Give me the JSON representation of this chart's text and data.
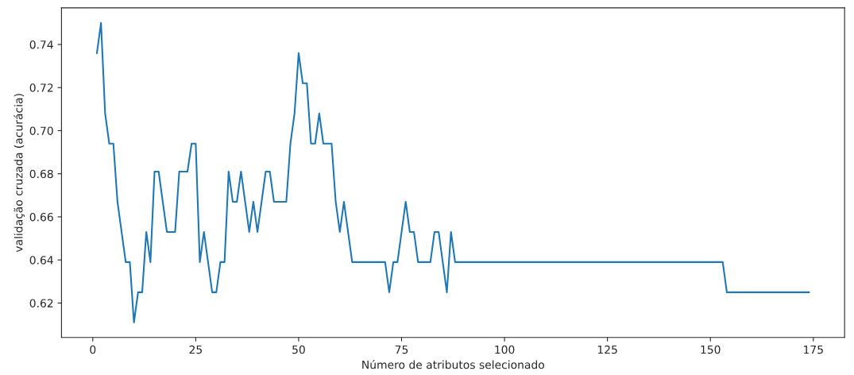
{
  "chart_data": {
    "type": "line",
    "xlabel": "Número de atributos selecionado",
    "ylabel": "validação cruzada (acurácia)",
    "xlim": [
      -7.6,
      182.6
    ],
    "xticks": [
      0,
      25,
      50,
      75,
      100,
      125,
      150,
      175
    ],
    "ylim": [
      0.604,
      0.757
    ],
    "yticks": [
      0.62,
      0.64,
      0.66,
      0.68,
      {
        "value": 0.7,
        "label": "0.70"
      },
      0.72,
      0.74
    ],
    "grid": false,
    "series": [
      {
        "color": "#1f77b4",
        "x": [
          1,
          2,
          3,
          4,
          5,
          6,
          7,
          8,
          9,
          10,
          11,
          12,
          13,
          14,
          15,
          16,
          17,
          18,
          19,
          20,
          21,
          22,
          23,
          24,
          25,
          26,
          27,
          28,
          29,
          30,
          31,
          32,
          33,
          34,
          35,
          36,
          37,
          38,
          39,
          40,
          41,
          42,
          43,
          44,
          45,
          46,
          47,
          48,
          49,
          50,
          51,
          52,
          53,
          54,
          55,
          56,
          57,
          58,
          59,
          60,
          61,
          62,
          63,
          71,
          72,
          73,
          74,
          75,
          76,
          77,
          78,
          79,
          82,
          83,
          84,
          85,
          86,
          87,
          88,
          153,
          154,
          174
        ],
        "values": [
          0.736,
          0.75,
          0.708,
          0.694,
          0.694,
          0.667,
          0.653,
          0.639,
          0.639,
          0.611,
          0.625,
          0.625,
          0.653,
          0.639,
          0.681,
          0.681,
          0.667,
          0.653,
          0.653,
          0.653,
          0.681,
          0.681,
          0.681,
          0.694,
          0.694,
          0.639,
          0.653,
          0.639,
          0.625,
          0.625,
          0.639,
          0.639,
          0.681,
          0.667,
          0.667,
          0.681,
          0.667,
          0.653,
          0.667,
          0.653,
          0.667,
          0.681,
          0.681,
          0.667,
          0.667,
          0.667,
          0.667,
          0.694,
          0.708,
          0.736,
          0.722,
          0.722,
          0.694,
          0.694,
          0.708,
          0.694,
          0.694,
          0.694,
          0.667,
          0.653,
          0.667,
          0.653,
          0.639,
          0.639,
          0.625,
          0.639,
          0.639,
          0.653,
          0.667,
          0.653,
          0.653,
          0.639,
          0.639,
          0.653,
          0.653,
          0.639,
          0.625,
          0.653,
          0.639,
          0.639,
          0.625,
          0.625
        ]
      }
    ]
  }
}
